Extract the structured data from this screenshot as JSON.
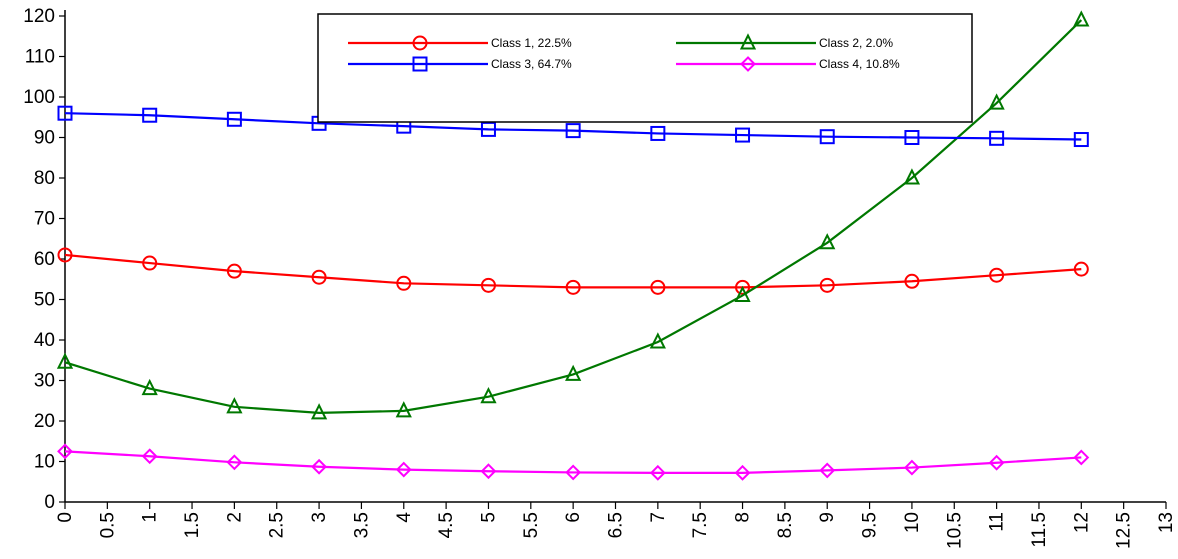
{
  "chart_data": {
    "type": "line",
    "title": "",
    "xlabel": "",
    "ylabel": "",
    "xlim": [
      0,
      13
    ],
    "ylim": [
      0,
      120
    ],
    "x_ticks": [
      0,
      0.5,
      1,
      1.5,
      2,
      2.5,
      3,
      3.5,
      4,
      4.5,
      5,
      5.5,
      6,
      6.5,
      7,
      7.5,
      8,
      8.5,
      9,
      9.5,
      10,
      10.5,
      11,
      11.5,
      12,
      12.5,
      13
    ],
    "x_tick_labels": [
      "0",
      "0.5",
      "1",
      "1.5",
      "2",
      "2.5",
      "3",
      "3.5",
      "4",
      "4.5",
      "5",
      "5.5",
      "6",
      "6.5",
      "7",
      "7.5",
      "8",
      "8.5",
      "9",
      "9.5",
      "10",
      "10.5",
      "11",
      "11.5",
      "12",
      "12.5",
      "13"
    ],
    "y_ticks": [
      0,
      10,
      20,
      30,
      40,
      50,
      60,
      70,
      80,
      90,
      100,
      110,
      120
    ],
    "y_tick_labels": [
      "0",
      "10",
      "20",
      "30",
      "40",
      "50",
      "60",
      "70",
      "80",
      "90",
      "100",
      "110",
      "120"
    ],
    "grid": false,
    "legend_position": "top-center",
    "x": [
      0,
      1,
      2,
      3,
      4,
      5,
      6,
      7,
      8,
      9,
      10,
      11,
      12
    ],
    "series": [
      {
        "name": "Class 1, 22.5%",
        "color": "#ff0000",
        "marker": "circle",
        "values": [
          61,
          59,
          57,
          55.5,
          54,
          53.5,
          53,
          53,
          53,
          53.5,
          54.5,
          56,
          57.5
        ]
      },
      {
        "name": "Class 2, 2.0%",
        "color": "#007800",
        "marker": "triangle",
        "values": [
          34.5,
          28,
          23.5,
          22,
          22.5,
          26,
          31.5,
          39.5,
          51,
          64,
          80,
          98.5,
          119
        ]
      },
      {
        "name": "Class 3, 64.7%",
        "color": "#0000ff",
        "marker": "square",
        "values": [
          96,
          95.5,
          94.5,
          93.5,
          92.8,
          92,
          91.7,
          91,
          90.6,
          90.2,
          90,
          89.8,
          89.5
        ]
      },
      {
        "name": "Class 4, 10.8%",
        "color": "#ff00ff",
        "marker": "diamond",
        "values": [
          12.5,
          11.3,
          9.8,
          8.7,
          8,
          7.6,
          7.3,
          7.2,
          7.2,
          7.8,
          8.5,
          9.7,
          11
        ]
      }
    ]
  }
}
